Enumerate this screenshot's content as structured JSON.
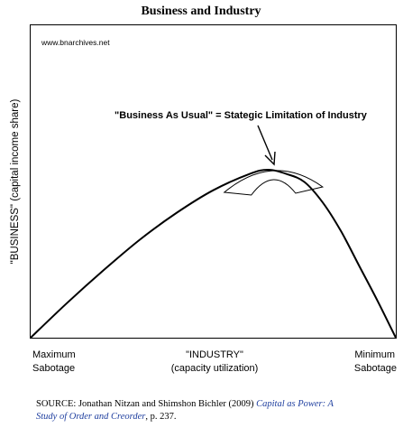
{
  "chart_data": {
    "type": "line",
    "title": "Business and Industry",
    "watermark": "www.bnarchives.net",
    "ylabel": "\"BUSINESS\" (capital income share)",
    "xlabel": "\"INDUSTRY\"",
    "xlabel_sub": "(capacity utilization)",
    "x_left_label": [
      "Maximum",
      "Sabotage"
    ],
    "x_right_label": [
      "Minimum",
      "Sabotage"
    ],
    "annotation": "\"Business As Usual\" = Stategic Limitation of Industry",
    "series": [
      {
        "x": [
          0,
          0.1,
          0.2,
          0.3,
          0.4,
          0.5,
          0.6,
          0.65,
          0.7,
          0.75,
          0.8,
          0.85,
          0.9,
          0.95,
          1.0
        ],
        "values": [
          0,
          0.17,
          0.33,
          0.48,
          0.61,
          0.72,
          0.8,
          0.82,
          0.8,
          0.76,
          0.66,
          0.52,
          0.35,
          0.18,
          0
        ]
      }
    ],
    "highlight_range": [
      0.55,
      0.78
    ],
    "grid": false,
    "color": "#000000"
  },
  "source": {
    "prefix": "SOURCE: Jonathan Nitzan and Shimshon Bichler (2009) ",
    "link": "Capital as Power: A Study of Order and Creorder",
    "suffix": ", p. 237.",
    "link_color": "#1f3f9f"
  }
}
